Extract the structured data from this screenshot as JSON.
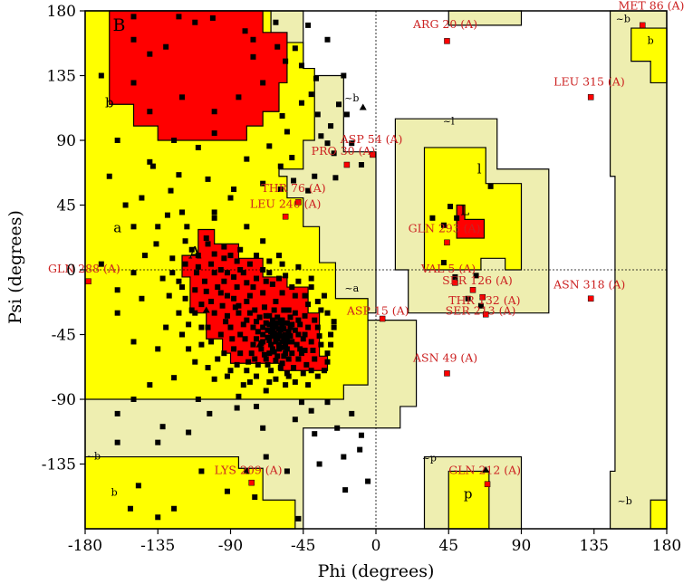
{
  "chart_data": {
    "type": "scatter",
    "xlabel": "Phi (degrees)",
    "ylabel": "Psi (degrees)",
    "xlim": [
      -180,
      180
    ],
    "ylim": [
      -180,
      180
    ],
    "xticks": [
      -180,
      -135,
      -90,
      -45,
      0,
      45,
      90,
      135,
      180
    ],
    "yticks": [
      180,
      135,
      90,
      45,
      0,
      -45,
      -90,
      -135
    ],
    "grid": false,
    "colors": {
      "core": "#ff0000",
      "allowed": "#ffff00",
      "generous": "#eeeeb0",
      "generous2": "#f5f5c8",
      "point": "#000000",
      "outlier_fill": "#ff0000",
      "outlier_label": "#cc2222"
    },
    "region_labels": [
      {
        "text": "B",
        "x": -159,
        "y": 166,
        "size": "big"
      },
      {
        "text": "A",
        "x": -112,
        "y": 8,
        "size": "big"
      },
      {
        "text": "b",
        "x": -165,
        "y": 113,
        "size": "med"
      },
      {
        "text": "a",
        "x": -160,
        "y": 26,
        "size": "med"
      },
      {
        "text": "l",
        "x": 64,
        "y": 67,
        "size": "med"
      },
      {
        "text": "L",
        "x": 55,
        "y": 38,
        "size": "med"
      },
      {
        "text": "p",
        "x": 57,
        "y": -159,
        "size": "med"
      },
      {
        "text": "b",
        "x": -162,
        "y": -157,
        "size": "small"
      },
      {
        "text": "b",
        "x": 170,
        "y": 157,
        "size": "small"
      },
      {
        "text": "~b",
        "x": -15,
        "y": 117,
        "size": "small"
      },
      {
        "text": "~l",
        "x": 45,
        "y": 101,
        "size": "small"
      },
      {
        "text": "~a",
        "x": -15,
        "y": -15,
        "size": "small"
      },
      {
        "text": "~b",
        "x": -175,
        "y": -132,
        "size": "small"
      },
      {
        "text": "~p",
        "x": 33,
        "y": -133,
        "size": "small"
      },
      {
        "text": "~b",
        "x": 153,
        "y": 172,
        "size": "small"
      },
      {
        "text": "~b",
        "x": 154,
        "y": -163,
        "size": "small"
      }
    ],
    "outliers": [
      {
        "label": "MET 86 (A)",
        "x": 165,
        "y": 170,
        "lx": 150,
        "ly": 181
      },
      {
        "label": "ARG 20 (A)",
        "x": 44,
        "y": 159,
        "lx": 23,
        "ly": 168
      },
      {
        "label": "LEU 315 (A)",
        "x": 133,
        "y": 120,
        "lx": 110,
        "ly": 128
      },
      {
        "label": "ASP 54 (A)",
        "x": -2,
        "y": 80,
        "lx": -22,
        "ly": 88
      },
      {
        "label": "PRO 30 (A)",
        "x": -18,
        "y": 73,
        "lx": -40,
        "ly": 80
      },
      {
        "label": "THR 76 (A)",
        "x": -48,
        "y": 47,
        "lx": -71,
        "ly": 54
      },
      {
        "label": "LEU 240 (A)",
        "x": -56,
        "y": 37,
        "lx": -78,
        "ly": 43
      },
      {
        "label": "GLN 293 (A)",
        "x": 44,
        "y": 19,
        "lx": 20,
        "ly": 26
      },
      {
        "label": "GLN 288 (A)",
        "x": -178,
        "y": -8,
        "lx": -203,
        "ly": -2
      },
      {
        "label": "VAL 5 (A)",
        "x": 49,
        "y": -9,
        "lx": 28,
        "ly": -2
      },
      {
        "label": "SER 126 (A)",
        "x": 60,
        "y": -14,
        "lx": 41,
        "ly": -10
      },
      {
        "label": "THR 132 (A)",
        "x": 66,
        "y": -19,
        "lx": 45,
        "ly": -24
      },
      {
        "label": "ASN 318 (A)",
        "x": 133,
        "y": -20,
        "lx": 110,
        "ly": -13
      },
      {
        "label": "SER 213 (A)",
        "x": 68,
        "y": -31,
        "lx": 43,
        "ly": -31
      },
      {
        "label": "ASP 15 (A)",
        "x": 4,
        "y": -34,
        "lx": -18,
        "ly": -31
      },
      {
        "label": "ASN 49 (A)",
        "x": 44,
        "y": -72,
        "lx": 23,
        "ly": -64
      },
      {
        "label": "LYS 209 (A)",
        "x": -77,
        "y": -148,
        "lx": -100,
        "ly": -142
      },
      {
        "label": "GLN 212 (A)",
        "x": 69,
        "y": -149,
        "lx": 45,
        "ly": -142
      }
    ],
    "triangles": [
      {
        "x": -8,
        "y": 113
      },
      {
        "x": 68,
        "y": -139
      },
      {
        "x": -105,
        "y": -28
      },
      {
        "x": -72,
        "y": -52
      }
    ],
    "points": [
      [
        -150,
        176
      ],
      [
        -122,
        176
      ],
      [
        -101,
        175
      ],
      [
        -112,
        172
      ],
      [
        -62,
        172
      ],
      [
        -81,
        166
      ],
      [
        -76,
        160
      ],
      [
        -61,
        155
      ],
      [
        -50,
        154
      ],
      [
        -56,
        145
      ],
      [
        -76,
        148
      ],
      [
        -46,
        142
      ],
      [
        -37,
        133
      ],
      [
        -40,
        122
      ],
      [
        -46,
        116
      ],
      [
        -23,
        115
      ],
      [
        -58,
        107
      ],
      [
        -36,
        108
      ],
      [
        -18,
        108
      ],
      [
        -28,
        100
      ],
      [
        -55,
        96
      ],
      [
        -34,
        93
      ],
      [
        -30,
        88
      ],
      [
        -15,
        88
      ],
      [
        -66,
        86
      ],
      [
        -52,
        78
      ],
      [
        -26,
        81
      ],
      [
        -80,
        77
      ],
      [
        -59,
        72
      ],
      [
        -9,
        73
      ],
      [
        -138,
        72
      ],
      [
        -122,
        66
      ],
      [
        -104,
        63
      ],
      [
        -127,
        55
      ],
      [
        -90,
        50
      ],
      [
        -51,
        62
      ],
      [
        -38,
        65
      ],
      [
        -59,
        56
      ],
      [
        -145,
        50
      ],
      [
        -150,
        30
      ],
      [
        -129,
        38
      ],
      [
        -117,
        30
      ],
      [
        -118,
        20
      ],
      [
        -136,
        18
      ],
      [
        -143,
        10
      ],
      [
        -105,
        22
      ],
      [
        -150,
        -2
      ],
      [
        -160,
        -14
      ],
      [
        -88,
        56
      ],
      [
        -100,
        36
      ],
      [
        -111,
        -2
      ],
      [
        -122,
        -8
      ],
      [
        -110,
        10
      ],
      [
        -100,
        11
      ],
      [
        -96,
        0
      ],
      [
        -88,
        -5
      ],
      [
        -80,
        -9
      ],
      [
        -92,
        -18
      ],
      [
        -102,
        -22
      ],
      [
        -85,
        -25
      ],
      [
        -75,
        -28
      ],
      [
        -66,
        -32
      ],
      [
        -58,
        -35
      ],
      [
        -70,
        -40
      ],
      [
        -62,
        -45
      ],
      [
        -52,
        -38
      ],
      [
        -55,
        -48
      ],
      [
        -48,
        -45
      ],
      [
        -64,
        -55
      ],
      [
        -56,
        -58
      ],
      [
        -44,
        -56
      ],
      [
        -40,
        -50
      ],
      [
        -67,
        -47
      ],
      [
        -73,
        -43
      ],
      [
        -80,
        -35
      ],
      [
        -92,
        -32
      ],
      [
        -84,
        -45
      ],
      [
        -76,
        -52
      ],
      [
        -68,
        -62
      ],
      [
        -58,
        -65
      ],
      [
        -48,
        -62
      ],
      [
        -38,
        -62
      ],
      [
        -45,
        -72
      ],
      [
        -55,
        -72
      ],
      [
        -65,
        -70
      ],
      [
        -75,
        -62
      ],
      [
        -88,
        -55
      ],
      [
        -96,
        -45
      ],
      [
        -104,
        -40
      ],
      [
        -112,
        -30
      ],
      [
        -118,
        -20
      ],
      [
        -80,
        -70
      ],
      [
        -90,
        -70
      ],
      [
        -98,
        -62
      ],
      [
        -108,
        -52
      ],
      [
        -112,
        -64
      ],
      [
        -100,
        -76
      ],
      [
        -82,
        -80
      ],
      [
        -68,
        -84
      ],
      [
        -56,
        -80
      ],
      [
        -42,
        -80
      ],
      [
        -32,
        -70
      ],
      [
        -30,
        -58
      ],
      [
        -28,
        -45
      ],
      [
        -36,
        -40
      ],
      [
        -44,
        -32
      ],
      [
        -54,
        -28
      ],
      [
        -62,
        -22
      ],
      [
        -70,
        -16
      ],
      [
        -78,
        -18
      ],
      [
        -86,
        -12
      ],
      [
        -94,
        -8
      ],
      [
        -74,
        -6
      ],
      [
        -64,
        -10
      ],
      [
        -58,
        -16
      ],
      [
        -50,
        -18
      ],
      [
        -42,
        -24
      ],
      [
        -34,
        -28
      ],
      [
        -26,
        -36
      ],
      [
        -40,
        -12
      ],
      [
        -48,
        -8
      ],
      [
        -56,
        -4
      ],
      [
        -66,
        -2
      ],
      [
        -46,
        -92
      ],
      [
        -74,
        -95
      ],
      [
        -160,
        -100
      ],
      [
        -132,
        -109
      ],
      [
        -116,
        -113
      ],
      [
        -103,
        -100
      ],
      [
        -38,
        -114
      ],
      [
        -15,
        -100
      ],
      [
        -9,
        -115
      ],
      [
        -5,
        -147
      ],
      [
        -19,
        -153
      ],
      [
        -55,
        -140
      ],
      [
        -75,
        -158
      ],
      [
        -92,
        -154
      ],
      [
        -108,
        -140
      ],
      [
        -125,
        -166
      ],
      [
        -135,
        -172
      ],
      [
        -147,
        -150
      ],
      [
        -152,
        -166
      ],
      [
        -48,
        -173
      ],
      [
        42,
        5
      ],
      [
        49,
        -5
      ],
      [
        57,
        -20
      ],
      [
        62,
        -4
      ],
      [
        35,
        36
      ],
      [
        42,
        31
      ],
      [
        50,
        36
      ],
      [
        46,
        44
      ],
      [
        71,
        58
      ],
      [
        -170,
        4
      ],
      [
        -160,
        -30
      ],
      [
        -145,
        -20
      ],
      [
        -130,
        -40
      ],
      [
        -150,
        -50
      ],
      [
        -135,
        -55
      ],
      [
        -125,
        -75
      ],
      [
        -140,
        -80
      ],
      [
        -150,
        -90
      ],
      [
        -110,
        -90
      ],
      [
        -86,
        -96
      ],
      [
        -70,
        -110
      ],
      [
        -50,
        -104
      ],
      [
        -30,
        -92
      ],
      [
        -24,
        -110
      ],
      [
        -10,
        -125
      ],
      [
        -20,
        -130
      ],
      [
        -35,
        -135
      ],
      [
        -68,
        -130
      ],
      [
        -80,
        -140
      ],
      [
        -135,
        -120
      ],
      [
        -160,
        -120
      ],
      [
        -120,
        120
      ],
      [
        -100,
        110
      ],
      [
        -85,
        120
      ],
      [
        -70,
        130
      ],
      [
        -140,
        110
      ],
      [
        -150,
        130
      ],
      [
        -140,
        150
      ],
      [
        -130,
        155
      ],
      [
        -150,
        160
      ],
      [
        -100,
        95
      ],
      [
        -110,
        85
      ],
      [
        -125,
        90
      ],
      [
        -140,
        75
      ],
      [
        -160,
        90
      ],
      [
        -165,
        65
      ],
      [
        -155,
        45
      ],
      [
        -135,
        30
      ],
      [
        -120,
        40
      ],
      [
        -100,
        40
      ],
      [
        -80,
        30
      ],
      [
        -70,
        20
      ],
      [
        -60,
        10
      ],
      [
        -170,
        135
      ],
      [
        -20,
        135
      ],
      [
        -30,
        160
      ],
      [
        -42,
        170
      ],
      [
        -25,
        64
      ],
      [
        -42,
        55
      ],
      [
        -70,
        60
      ],
      [
        -85,
        -88
      ],
      [
        -40,
        -98
      ],
      [
        65,
        -25
      ],
      [
        -60,
        -45
      ],
      [
        -62,
        -40
      ],
      [
        -61,
        -48
      ],
      [
        -65,
        -43
      ],
      [
        -63,
        -38
      ],
      [
        -59,
        -42
      ],
      [
        -58,
        -50
      ],
      [
        -66,
        -49
      ],
      [
        -57,
        -41
      ],
      [
        -64,
        -35
      ],
      [
        -68,
        -37
      ],
      [
        -70,
        -45
      ],
      [
        -55,
        -55
      ],
      [
        -60,
        -55
      ],
      [
        -52,
        -50
      ],
      [
        -50,
        -42
      ],
      [
        -53,
        -33
      ],
      [
        -72,
        -33
      ],
      [
        -76,
        -40
      ],
      [
        -71,
        -55
      ],
      [
        -66,
        -58
      ],
      [
        -61,
        -60
      ],
      [
        -54,
        -62
      ],
      [
        -47,
        -55
      ],
      [
        -45,
        -48
      ],
      [
        -47,
        -38
      ],
      [
        -50,
        -30
      ],
      [
        -57,
        -28
      ],
      [
        -63,
        -28
      ],
      [
        -69,
        -26
      ],
      [
        -78,
        -30
      ],
      [
        -82,
        -38
      ],
      [
        -81,
        -48
      ],
      [
        -77,
        -58
      ],
      [
        -73,
        -66
      ],
      [
        -67,
        -66
      ],
      [
        -59,
        -68
      ],
      [
        -51,
        -68
      ],
      [
        -43,
        -66
      ],
      [
        -39,
        -56
      ],
      [
        -35,
        -46
      ],
      [
        -38,
        -35
      ],
      [
        -42,
        -40
      ],
      [
        -59,
        -35
      ],
      [
        -62,
        -50
      ],
      [
        -56,
        -45
      ],
      [
        -53,
        -46
      ],
      [
        -64,
        -46
      ],
      [
        -60,
        -41
      ],
      [
        -58,
        -38
      ],
      [
        -67,
        -42
      ],
      [
        -65,
        -52
      ],
      [
        -63,
        -57
      ],
      [
        -56,
        -52
      ],
      [
        -49,
        -52
      ],
      [
        -55,
        -37
      ],
      [
        -61,
        -33
      ],
      [
        -68,
        -32
      ],
      [
        -74,
        -36
      ],
      [
        -74,
        -48
      ],
      [
        -71,
        -51
      ],
      [
        -69,
        -59
      ],
      [
        -62,
        -63
      ],
      [
        -57,
        -60
      ],
      [
        -52,
        -58
      ],
      [
        -46,
        -58
      ],
      [
        -44,
        -45
      ],
      [
        -48,
        -35
      ],
      [
        -53,
        -40
      ],
      [
        -66,
        -38
      ],
      [
        -70,
        -50
      ],
      [
        -60,
        -52
      ],
      [
        -57,
        -47
      ],
      [
        -54,
        -43
      ],
      [
        -63,
        -44
      ],
      [
        -59,
        -46
      ],
      [
        -61,
        -37
      ],
      [
        -64,
        -41
      ],
      [
        -58,
        -54
      ],
      [
        -55,
        -50
      ],
      [
        -62,
        -47
      ],
      [
        -95,
        -25
      ],
      [
        -100,
        -30
      ],
      [
        -90,
        -40
      ],
      [
        -85,
        -30
      ],
      [
        -105,
        -15
      ],
      [
        -98,
        -12
      ],
      [
        -92,
        -2
      ],
      [
        -84,
        0
      ],
      [
        -76,
        -12
      ],
      [
        -68,
        -8
      ],
      [
        -60,
        -6
      ],
      [
        -52,
        -12
      ],
      [
        -44,
        -18
      ],
      [
        -36,
        -22
      ],
      [
        -30,
        -30
      ],
      [
        -34,
        -52
      ],
      [
        -30,
        -64
      ],
      [
        -36,
        -74
      ],
      [
        -50,
        -78
      ],
      [
        -62,
        -76
      ],
      [
        -74,
        -74
      ],
      [
        -86,
        -66
      ],
      [
        -94,
        -58
      ],
      [
        -102,
        -50
      ],
      [
        -108,
        -40
      ],
      [
        -114,
        -28
      ],
      [
        -106,
        -8
      ],
      [
        -112,
        -14
      ],
      [
        -120,
        -12
      ],
      [
        -126,
        -2
      ],
      [
        -118,
        4
      ],
      [
        -110,
        2
      ],
      [
        -102,
        4
      ],
      [
        -94,
        8
      ],
      [
        -86,
        6
      ],
      [
        -78,
        4
      ],
      [
        -70,
        0
      ],
      [
        -80,
        -22
      ],
      [
        -88,
        -20
      ],
      [
        -96,
        -16
      ],
      [
        -120,
        -45
      ],
      [
        -116,
        -55
      ],
      [
        -104,
        -68
      ],
      [
        -92,
        -74
      ],
      [
        -78,
        -78
      ],
      [
        -66,
        -78
      ],
      [
        -54,
        -74
      ],
      [
        -40,
        -70
      ],
      [
        -28,
        -52
      ],
      [
        -26,
        -40
      ],
      [
        -32,
        -18
      ],
      [
        -40,
        -6
      ],
      [
        -48,
        2
      ],
      [
        -58,
        4
      ],
      [
        -66,
        6
      ],
      [
        -74,
        10
      ],
      [
        -84,
        14
      ],
      [
        -94,
        16
      ],
      [
        -104,
        18
      ],
      [
        -114,
        14
      ],
      [
        -126,
        8
      ],
      [
        -132,
        -6
      ],
      [
        -128,
        -18
      ],
      [
        -122,
        -30
      ],
      [
        -116,
        -38
      ],
      [
        -90,
        10
      ],
      [
        -82,
        -2
      ],
      [
        -100,
        -2
      ],
      [
        -108,
        -24
      ],
      [
        -84,
        -58
      ],
      [
        -79,
        -64
      ],
      [
        -89,
        -48
      ],
      [
        -93,
        -36
      ],
      [
        -87,
        -26
      ]
    ]
  }
}
